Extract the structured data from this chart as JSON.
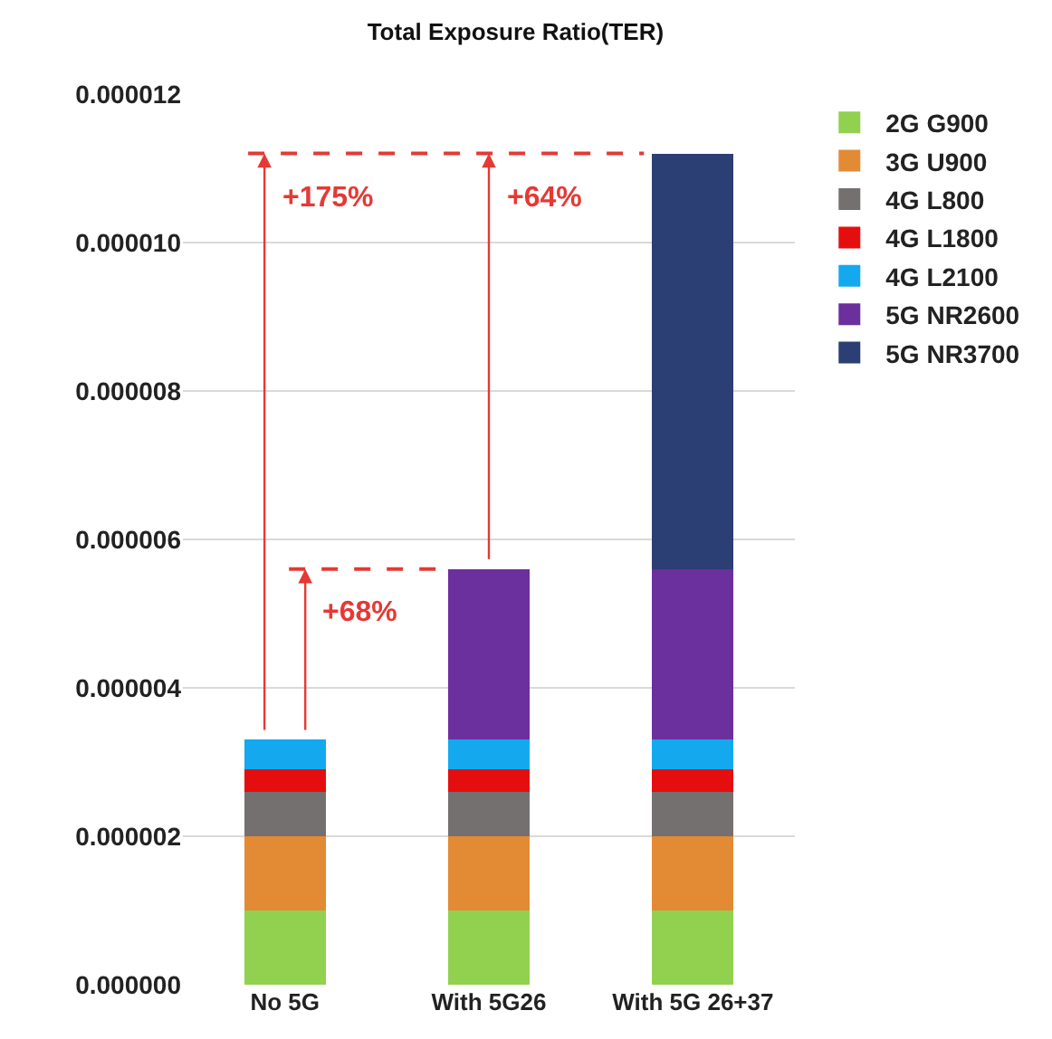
{
  "chart_data": {
    "type": "bar",
    "title": "Total Exposure Ratio(TER)",
    "stacked": true,
    "categories": [
      "No 5G",
      "With 5G26",
      "With 5G 26+37"
    ],
    "series": [
      {
        "name": "2G G900",
        "color": "#92d050",
        "values": [
          1e-06,
          1e-06,
          1e-06
        ]
      },
      {
        "name": "3G U900",
        "color": "#e38a35",
        "values": [
          1e-06,
          1e-06,
          1e-06
        ]
      },
      {
        "name": "4G L800",
        "color": "#747070",
        "values": [
          6e-07,
          6e-07,
          6e-07
        ]
      },
      {
        "name": "4G L1800",
        "color": "#e50e0e",
        "values": [
          3e-07,
          3e-07,
          3e-07
        ]
      },
      {
        "name": "4G L2100",
        "color": "#14a9ee",
        "values": [
          4e-07,
          4e-07,
          4e-07
        ]
      },
      {
        "name": "5G NR2600",
        "color": "#6b2f9e",
        "values": [
          null,
          2.3e-06,
          2.3e-06
        ]
      },
      {
        "name": "5G NR3700",
        "color": "#2b3f74",
        "values": [
          null,
          null,
          5.6e-06
        ]
      }
    ],
    "ylim": [
      0,
      1.2e-05
    ],
    "yticks": [
      {
        "value": 0,
        "label": "0.000000"
      },
      {
        "value": 2e-06,
        "label": "0.000002"
      },
      {
        "value": 4e-06,
        "label": "0.000004"
      },
      {
        "value": 6e-06,
        "label": "0.000006"
      },
      {
        "value": 8e-06,
        "label": "0.000008"
      },
      {
        "value": 1e-05,
        "label": "0.000010"
      },
      {
        "value": 1.2e-05,
        "label": "0.000012"
      }
    ],
    "grid": "y",
    "legend": "right",
    "ref_lines": [
      {
        "axis": "y",
        "value": 1.12e-05,
        "color": "#e53935",
        "line_style": "dashed"
      },
      {
        "axis": "y",
        "value": 5.6e-06,
        "color": "#e53935",
        "line_style": "dashed"
      }
    ],
    "annotations": [
      {
        "text": "+175%",
        "x": "No 5G",
        "y": 1.12e-05
      },
      {
        "text": "+68%",
        "x": "No 5G",
        "y": 5.6e-06
      },
      {
        "text": "+64%",
        "x": "With 5G26",
        "y": 1.12e-05
      }
    ]
  }
}
